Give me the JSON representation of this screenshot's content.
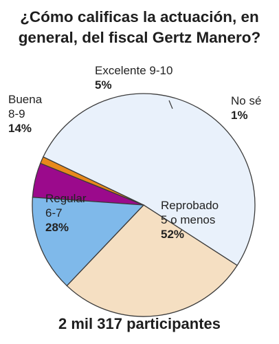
{
  "chart_data": {
    "type": "pie",
    "title": "¿Cómo calificas la actuación, en general, del fiscal Gertz Manero?",
    "slices": [
      {
        "label": "Excelente 9-10",
        "value": 5,
        "pct_label": "5%",
        "color": "#9b0a8c"
      },
      {
        "label": "No sé",
        "value": 1,
        "pct_label": "1%",
        "color": "#e8891c"
      },
      {
        "label": "Reprobado 5 o menos",
        "value": 52,
        "pct_label": "52%",
        "color": "#e9f1fb"
      },
      {
        "label": "Regular 6-7",
        "value": 28,
        "pct_label": "28%",
        "color": "#f5dfc2"
      },
      {
        "label": "Buena 8-9",
        "value": 14,
        "pct_label": "14%",
        "color": "#7fb9ea"
      }
    ],
    "footer": "2 mil 317 participantes"
  },
  "title_lines": [
    "¿Cómo calificas la actuación, en",
    "general, del fiscal Gertz Manero?"
  ],
  "labels": {
    "excelente": {
      "line1": "Excelente 9-10",
      "pct": "5%"
    },
    "nose": {
      "line1": "No sé",
      "pct": "1%"
    },
    "buena": {
      "line1": "Buena",
      "line2": "8-9",
      "pct": "14%"
    },
    "regular": {
      "line1": "Regular",
      "line2": "6-7",
      "pct": "28%"
    },
    "reprobado": {
      "line1": "Reprobado",
      "line2": "5 o menos",
      "pct": "52%"
    }
  }
}
